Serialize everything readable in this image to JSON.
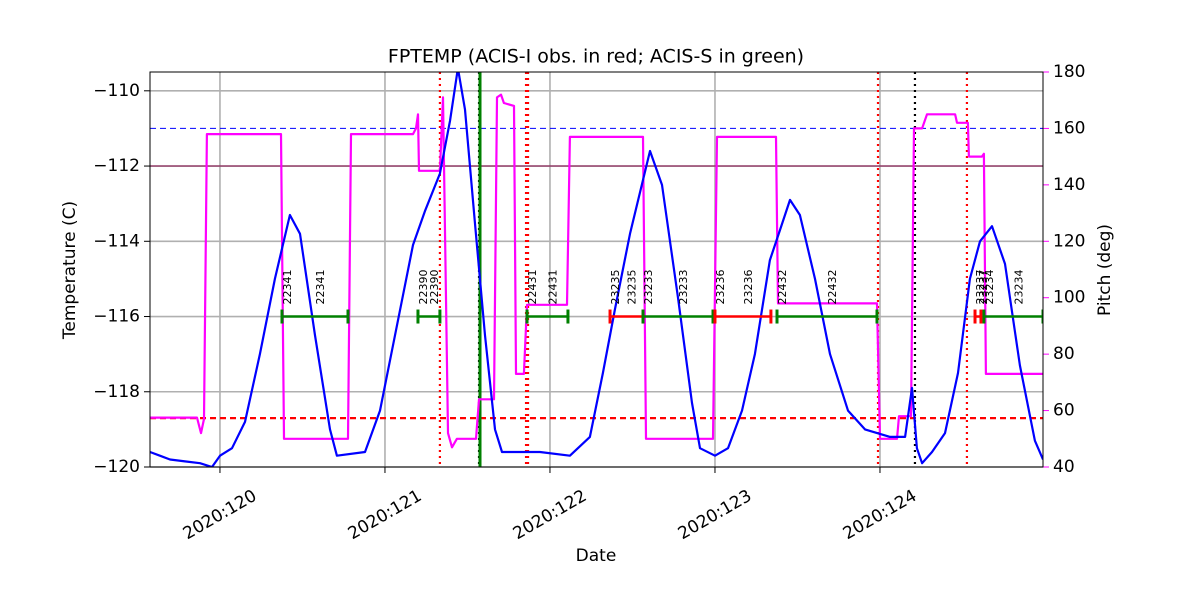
{
  "chart_data": {
    "type": "line",
    "title": "FPTEMP (ACIS-I obs. in red; ACIS-S in green)",
    "x_label": "Date",
    "y_label": "Temperature (C)",
    "y2_label": "Pitch (deg)",
    "y2_color": "#ff00ff",
    "grid": true,
    "xlim": [
      119.576,
      124.988
    ],
    "xticks": [
      {
        "value": 120,
        "label": "2020:120"
      },
      {
        "value": 121,
        "label": "2020:121"
      },
      {
        "value": 122,
        "label": "2020:122"
      },
      {
        "value": 123,
        "label": "2020:123"
      },
      {
        "value": 124,
        "label": "2020:124"
      }
    ],
    "ylim": [
      -120,
      -109.5
    ],
    "yticks": [
      {
        "value": -120,
        "label": "−120"
      },
      {
        "value": -118,
        "label": "−118"
      },
      {
        "value": -116,
        "label": "−116"
      },
      {
        "value": -114,
        "label": "−114"
      },
      {
        "value": -112,
        "label": "−112"
      },
      {
        "value": -110,
        "label": "−110"
      }
    ],
    "y2lim": [
      40,
      180
    ],
    "y2ticks": [
      40,
      60,
      80,
      100,
      120,
      140,
      160,
      180
    ],
    "series": [
      {
        "color": "#0000ff",
        "axis": "y",
        "x": [
          119.576,
          119.636,
          119.697,
          119.788,
          119.879,
          119.952,
          120.0,
          120.073,
          120.152,
          120.242,
          120.333,
          120.424,
          120.485,
          120.576,
          120.667,
          120.709,
          120.879,
          120.97,
          121.061,
          121.17,
          121.242,
          121.333,
          121.394,
          121.442,
          121.485,
          121.545,
          121.606,
          121.667,
          121.709,
          121.939,
          122.121,
          122.242,
          122.321,
          122.394,
          122.485,
          122.606,
          122.679,
          122.776,
          122.861,
          122.909,
          123.0,
          123.079,
          123.164,
          123.242,
          123.333,
          123.394,
          123.455,
          123.515,
          123.606,
          123.697,
          123.806,
          123.909,
          124.061,
          124.152,
          124.194,
          124.224,
          124.255,
          124.315,
          124.394,
          124.473,
          124.545,
          124.606,
          124.679,
          124.758,
          124.848,
          124.939,
          124.988
        ],
        "values": [
          -119.6,
          -119.7,
          -119.8,
          -119.85,
          -119.9,
          -120.0,
          -119.7,
          -119.5,
          -118.8,
          -117.0,
          -115.0,
          -113.3,
          -113.8,
          -116.5,
          -119.0,
          -119.7,
          -119.6,
          -118.5,
          -116.5,
          -114.1,
          -113.2,
          -112.2,
          -110.8,
          -109.4,
          -110.5,
          -113.5,
          -116.5,
          -119.0,
          -119.6,
          -119.6,
          -119.7,
          -119.2,
          -117.5,
          -115.8,
          -113.8,
          -111.6,
          -112.5,
          -115.5,
          -118.3,
          -119.5,
          -119.7,
          -119.5,
          -118.5,
          -117.0,
          -114.5,
          -113.7,
          -112.9,
          -113.3,
          -115.0,
          -117.0,
          -118.5,
          -119.0,
          -119.2,
          -119.2,
          -117.9,
          -119.5,
          -119.9,
          -119.6,
          -119.1,
          -117.5,
          -115.0,
          -114.0,
          -113.6,
          -114.6,
          -117.3,
          -119.3,
          -119.8
        ]
      },
      {
        "color": "#ff00ff",
        "axis": "y2",
        "x": [
          119.576,
          119.861,
          119.885,
          119.903,
          119.921,
          120.37,
          120.388,
          120.776,
          120.794,
          121.17,
          121.188,
          121.2,
          121.206,
          121.333,
          121.352,
          121.382,
          121.406,
          121.436,
          121.552,
          121.57,
          121.661,
          121.679,
          121.703,
          121.721,
          121.782,
          121.794,
          121.842,
          121.861,
          122.103,
          122.121,
          122.564,
          122.582,
          122.988,
          123.012,
          123.37,
          123.382,
          123.982,
          124.0,
          124.103,
          124.115,
          124.188,
          124.206,
          124.255,
          124.285,
          124.455,
          124.467,
          124.533,
          124.539,
          124.618,
          124.63,
          124.642,
          124.988
        ],
        "values": [
          57.5,
          57.5,
          52,
          57,
          158,
          158,
          50,
          50,
          158,
          158,
          160,
          165,
          145,
          145,
          171,
          52,
          47,
          50,
          50,
          64,
          64,
          171,
          172,
          169,
          168,
          73,
          73,
          97.5,
          97.5,
          157,
          157,
          50,
          50,
          157,
          157,
          98,
          98,
          50,
          50,
          58,
          58,
          160,
          160,
          165,
          165,
          162,
          162,
          150,
          150,
          151,
          73,
          73
        ]
      }
    ],
    "hlines": [
      {
        "value": -111,
        "color": "#0000ff",
        "style": "dashed"
      },
      {
        "value": -112,
        "color": "#800040",
        "style": "solid"
      },
      {
        "value": -118.7,
        "color": "#ff0000",
        "style": "dashed"
      }
    ],
    "vlines": [
      {
        "x": 121.333,
        "color": "#ff0000",
        "style": "dotted"
      },
      {
        "x": 121.57,
        "color": "#000000",
        "style": "dotted"
      },
      {
        "x": 121.576,
        "color": "#008000",
        "style": "solid"
      },
      {
        "x": 121.855,
        "color": "#ff0000",
        "style": "dotted"
      },
      {
        "x": 121.867,
        "color": "#ff0000",
        "style": "dotted"
      },
      {
        "x": 123.988,
        "color": "#ff0000",
        "style": "dotted"
      },
      {
        "x": 124.212,
        "color": "#000000",
        "style": "dotted"
      },
      {
        "x": 124.527,
        "color": "#ff0000",
        "style": "dotted"
      }
    ],
    "segment_level": -116,
    "segments": [
      {
        "start": 120.376,
        "end": 120.776,
        "color": "#008000",
        "label": "22341"
      },
      {
        "start": 121.2,
        "end": 121.333,
        "color": "#008000",
        "label": "22390"
      },
      {
        "start": 121.861,
        "end": 122.109,
        "color": "#008000",
        "label": "22431"
      },
      {
        "start": 122.364,
        "end": 122.564,
        "color": "#ff0000",
        "label": "23235"
      },
      {
        "start": 122.564,
        "end": 122.988,
        "color": "#008000",
        "label": "23233"
      },
      {
        "start": 123.0,
        "end": 123.339,
        "color": "#ff0000",
        "label": "23236"
      },
      {
        "start": 123.376,
        "end": 123.982,
        "color": "#008000",
        "label": "22432"
      },
      {
        "start": 124.576,
        "end": 124.612,
        "color": "#ff0000",
        "label": "23237"
      },
      {
        "start": 124.63,
        "end": 124.988,
        "color": "#008000",
        "label": "23234"
      }
    ]
  }
}
